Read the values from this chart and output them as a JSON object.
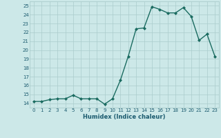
{
  "x": [
    0,
    1,
    2,
    3,
    4,
    5,
    6,
    7,
    8,
    9,
    10,
    11,
    12,
    13,
    14,
    15,
    16,
    17,
    18,
    19,
    20,
    21,
    22,
    23
  ],
  "y": [
    14.2,
    14.2,
    14.4,
    14.5,
    14.5,
    14.9,
    14.5,
    14.5,
    14.5,
    13.9,
    14.5,
    16.6,
    19.3,
    22.4,
    22.5,
    24.9,
    24.6,
    24.2,
    24.2,
    24.8,
    23.8,
    21.1,
    21.8,
    19.3
  ],
  "xlabel": "Humidex (Indice chaleur)",
  "xlim": [
    -0.5,
    23.5
  ],
  "ylim": [
    13.5,
    25.5
  ],
  "yticks": [
    14,
    15,
    16,
    17,
    18,
    19,
    20,
    21,
    22,
    23,
    24,
    25
  ],
  "xticks": [
    0,
    1,
    2,
    3,
    4,
    5,
    6,
    7,
    8,
    9,
    10,
    11,
    12,
    13,
    14,
    15,
    16,
    17,
    18,
    19,
    20,
    21,
    22,
    23
  ],
  "line_color": "#1a6b60",
  "marker_color": "#1a6b60",
  "bg_color": "#cce8e8",
  "grid_color": "#aacccc",
  "tick_label_color": "#1a5a6e",
  "xlabel_color": "#1a5a6e",
  "marker": "D",
  "markersize": 2.0,
  "linewidth": 1.0
}
